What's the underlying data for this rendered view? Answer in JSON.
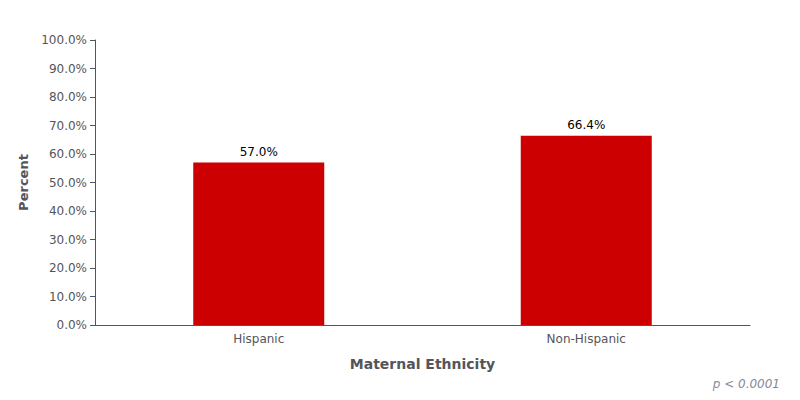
{
  "chart_data": {
    "type": "bar",
    "categories": [
      "Hispanic",
      "Non-Hispanic"
    ],
    "values": [
      57.0,
      66.4
    ],
    "value_labels": [
      "57.0%",
      "66.4%"
    ],
    "data_labels": true,
    "color": "#CC0000",
    "xlabel": "Maternal Ethnicity",
    "ylabel": "Percent",
    "ylim": [
      0,
      100
    ],
    "yticks": [
      {
        "value": 0,
        "label": "0.0%"
      },
      {
        "value": 10,
        "label": "10.0%"
      },
      {
        "value": 20,
        "label": "20.0%"
      },
      {
        "value": 30,
        "label": "30.0%"
      },
      {
        "value": 40,
        "label": "40.0%"
      },
      {
        "value": 50,
        "label": "50.0%"
      },
      {
        "value": 60,
        "label": "60.0%"
      },
      {
        "value": 70,
        "label": "70.0%"
      },
      {
        "value": 80,
        "label": "80.0%"
      },
      {
        "value": 90,
        "label": "90.0%"
      },
      {
        "value": 100,
        "label": "100.0%"
      }
    ],
    "grid": false,
    "annotation": "p < 0.0001"
  }
}
